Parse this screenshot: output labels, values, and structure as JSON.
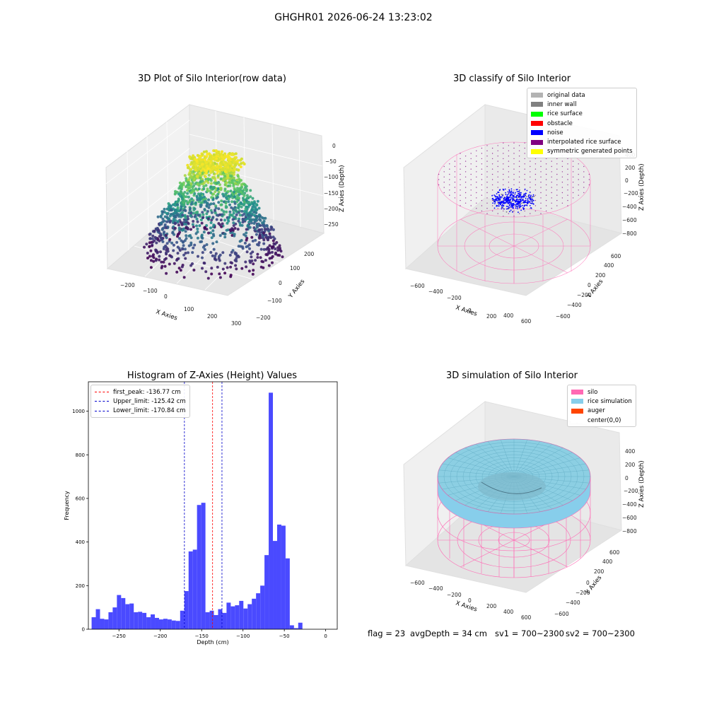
{
  "suptitle": "GHGHR01 2026-06-24 13:23:02",
  "panels": {
    "raw": {
      "title": "3D Plot of Silo Interior(row data)",
      "xlabel": "X Axies",
      "ylabel": "Y Axies",
      "zlabel": "Z Axies (Depth)",
      "xticks": [
        "−200",
        "−100",
        "0",
        "100",
        "200",
        "300"
      ],
      "yticks": [
        "−200",
        "−100",
        "0",
        "100",
        "200"
      ],
      "zticks": [
        "0",
        "−50",
        "−100",
        "−150",
        "−200",
        "−250"
      ]
    },
    "classify": {
      "title": "3D classify of Silo Interior",
      "xlabel": "X Axies",
      "ylabel": "Y Axies",
      "zlabel": "Z Axies (Depth)",
      "xticks": [
        "−600",
        "−400",
        "−200",
        "0",
        "200",
        "400",
        "600"
      ],
      "yticks": [
        "−600",
        "−400",
        "−200",
        "0",
        "200",
        "400",
        "600"
      ],
      "zticks": [
        "400",
        "200",
        "0",
        "−200",
        "−400",
        "−600",
        "−800"
      ],
      "legend": [
        {
          "label": "original data",
          "color": "#b3b3b3"
        },
        {
          "label": "inner wall",
          "color": "#808080"
        },
        {
          "label": "rice surface",
          "color": "#00ff00"
        },
        {
          "label": "obstacle",
          "color": "#ff0000"
        },
        {
          "label": "noise",
          "color": "#0000ff"
        },
        {
          "label": "interpolated rice surface",
          "color": "#800080"
        },
        {
          "label": "symmetric generated points",
          "color": "#ffff00"
        }
      ]
    },
    "simulation": {
      "title": "3D simulation of Silo Interior",
      "xlabel": "X Axies",
      "ylabel": "Y Axies",
      "zlabel": "Z Axies (Depth)",
      "xticks": [
        "−600",
        "−400",
        "−200",
        "0",
        "200",
        "400",
        "600"
      ],
      "yticks": [
        "−600",
        "−400",
        "−200",
        "0",
        "200",
        "400",
        "600"
      ],
      "zticks": [
        "400",
        "200",
        "0",
        "−200",
        "−400",
        "−600",
        "−800"
      ],
      "legend": [
        {
          "label": "silo",
          "color": "#ff69b4"
        },
        {
          "label": "rice simulation",
          "color": "#87ceeb"
        },
        {
          "label": "auger",
          "color": "#ff4500"
        },
        {
          "label": "center(0,0)",
          "color": "#ffffff"
        }
      ]
    }
  },
  "chart_data": {
    "type": "bar",
    "title": "Histogram of Z-Axies (Height) Values",
    "xlabel": "Depth (cm)",
    "ylabel": "Frequency",
    "xlim": [
      -287,
      14
    ],
    "ylim": [
      0,
      1135
    ],
    "xticks": [
      -250,
      -200,
      -150,
      -100,
      -50,
      0
    ],
    "yticks": [
      0,
      200,
      400,
      600,
      800,
      1000
    ],
    "bin_width": 5.1,
    "bin_start": -283.1,
    "bar_color": "#4a4aff",
    "values": [
      55,
      92,
      48,
      45,
      78,
      100,
      157,
      143,
      115,
      118,
      78,
      80,
      75,
      55,
      68,
      52,
      45,
      48,
      45,
      40,
      38,
      85,
      175,
      357,
      365,
      570,
      580,
      78,
      85,
      65,
      92,
      75,
      122,
      105,
      110,
      130,
      95,
      115,
      140,
      165,
      200,
      340,
      1085,
      405,
      480,
      475,
      325,
      18,
      5,
      30
    ],
    "vlines": [
      {
        "label": "first_peak: -136.77 cm",
        "value": -136.77,
        "color": "#ff0000"
      },
      {
        "label": "Upper_limit: -125.42 cm",
        "value": -125.42,
        "color": "#0000cc"
      },
      {
        "label": "Lower_limit: -170.84 cm",
        "value": -170.84,
        "color": "#0000cc"
      }
    ]
  },
  "footer": {
    "flag": "flag = 23",
    "avg": "avgDepth = 34 cm",
    "sv1": "sv1 = 700~2300",
    "sv2": "sv2 = 700~2300"
  }
}
